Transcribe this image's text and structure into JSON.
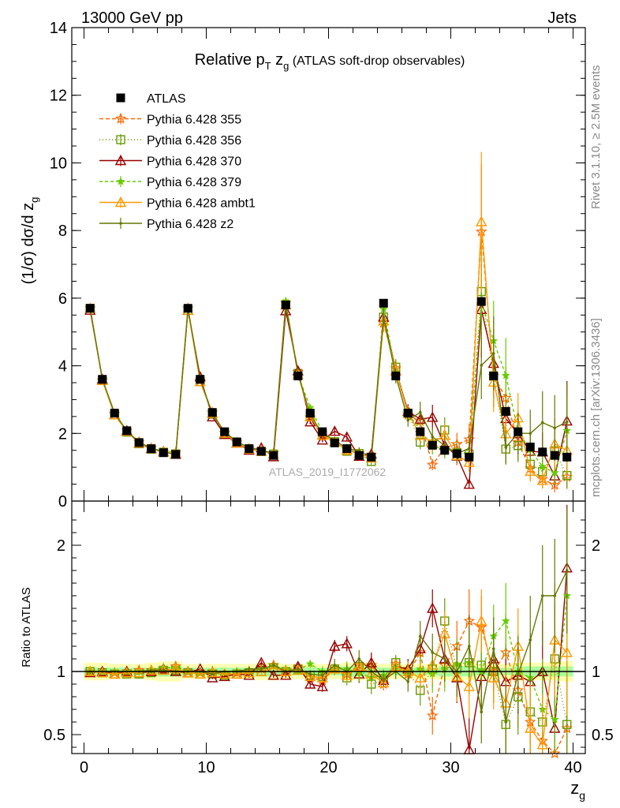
{
  "header": {
    "left": "13000 GeV pp",
    "right": "Jets"
  },
  "side_labels": {
    "rivet": "Rivet 3.1.10, ≥ 2.5M events",
    "mcplots": "mcplots.cern.ch [arXiv:1306.3436]"
  },
  "watermark": "ATLAS_2019_I1772062",
  "chart_data": {
    "type": "line",
    "title": {
      "main": "Relative p",
      "sub_T": "T",
      "mid": " z",
      "sub_g": "g",
      "tail": " (ATLAS soft-drop observables)"
    },
    "ylabel": "(1/σ) dσ/d z",
    "ylabel_sub": "g",
    "xlabel": "z",
    "xlabel_sub": "g",
    "ratio_ylabel": "Ratio to ATLAS",
    "xlim": [
      -1,
      41
    ],
    "ylim": [
      0,
      14
    ],
    "ratio_ylim": [
      0.35,
      2.35
    ],
    "x_ticks": [
      "0",
      "10",
      "20",
      "30",
      "40"
    ],
    "x_tick_values": [
      0,
      10,
      20,
      30,
      40
    ],
    "y_ticks": [
      "0",
      "2",
      "4",
      "6",
      "8",
      "10",
      "12",
      "14"
    ],
    "y_tick_values": [
      0,
      2,
      4,
      6,
      8,
      10,
      12,
      14
    ],
    "ratio_ticks": [
      "0.5",
      "1",
      "2"
    ],
    "ratio_tick_values": [
      0.5,
      1,
      2
    ],
    "x": [
      0.5,
      1.5,
      2.5,
      3.5,
      4.5,
      5.5,
      6.5,
      7.5,
      8.5,
      9.5,
      10.5,
      11.5,
      12.5,
      13.5,
      14.5,
      15.5,
      16.5,
      17.5,
      18.5,
      19.5,
      20.5,
      21.5,
      22.5,
      23.5,
      24.5,
      25.5,
      26.5,
      27.5,
      28.5,
      29.5,
      30.5,
      31.5,
      32.5,
      33.5,
      34.5,
      35.5,
      36.5,
      37.5,
      38.5,
      39.5
    ],
    "data": {
      "name": "ATLAS",
      "values": [
        5.7,
        3.6,
        2.6,
        2.08,
        1.73,
        1.55,
        1.43,
        1.38,
        5.7,
        3.6,
        2.62,
        2.05,
        1.75,
        1.55,
        1.47,
        1.35,
        5.8,
        3.7,
        2.6,
        2.05,
        1.72,
        1.55,
        1.35,
        1.3,
        5.85,
        3.7,
        2.6,
        2.05,
        1.65,
        1.5,
        1.4,
        1.3,
        5.9,
        3.7,
        2.65,
        2.05,
        1.6,
        1.45,
        1.35,
        1.3
      ],
      "band_inner": [
        0.03,
        0.03,
        0.03,
        0.03,
        0.03,
        0.03,
        0.04,
        0.04,
        0.03,
        0.03,
        0.03,
        0.03,
        0.03,
        0.03,
        0.04,
        0.04,
        0.03,
        0.03,
        0.03,
        0.03,
        0.03,
        0.04,
        0.04,
        0.04,
        0.03,
        0.03,
        0.03,
        0.03,
        0.03,
        0.04,
        0.04,
        0.04,
        0.03,
        0.03,
        0.03,
        0.04,
        0.04,
        0.04,
        0.04,
        0.04
      ],
      "band_outer": [
        0.07,
        0.07,
        0.06,
        0.06,
        0.06,
        0.07,
        0.08,
        0.08,
        0.06,
        0.06,
        0.06,
        0.06,
        0.06,
        0.06,
        0.07,
        0.07,
        0.06,
        0.06,
        0.06,
        0.06,
        0.06,
        0.07,
        0.07,
        0.07,
        0.06,
        0.06,
        0.06,
        0.06,
        0.06,
        0.07,
        0.07,
        0.07,
        0.06,
        0.06,
        0.06,
        0.07,
        0.07,
        0.07,
        0.07,
        0.08
      ]
    },
    "series": [
      {
        "name": "Pythia 6.428 355",
        "color": "#ff6600",
        "dash": "5,3",
        "marker": "star",
        "ratio": [
          1.0,
          0.99,
          0.99,
          1.0,
          1.01,
          1.01,
          1.02,
          1.04,
          1.0,
          0.99,
          1.0,
          0.98,
          0.99,
          1.0,
          1.02,
          1.05,
          1.01,
          1.03,
          0.95,
          0.93,
          1.02,
          0.98,
          1.05,
          1.05,
          0.9,
          1.06,
          0.98,
          1.15,
          0.65,
          1.05,
          1.2,
          1.4,
          1.35,
          1.0,
          1.15,
          0.85,
          0.6,
          0.45,
          0.35,
          0.55
        ],
        "err": [
          0.01,
          0.01,
          0.01,
          0.01,
          0.01,
          0.01,
          0.02,
          0.02,
          0.01,
          0.01,
          0.01,
          0.01,
          0.02,
          0.02,
          0.02,
          0.02,
          0.02,
          0.02,
          0.03,
          0.04,
          0.05,
          0.06,
          0.07,
          0.08,
          0.05,
          0.06,
          0.08,
          0.12,
          0.15,
          0.18,
          0.2,
          0.25,
          0.25,
          0.25,
          0.3,
          0.3,
          0.35,
          0.4,
          0.45,
          0.5
        ]
      },
      {
        "name": "Pythia 6.428 356",
        "color": "#669900",
        "dash": "1,3",
        "marker": "square",
        "ratio": [
          1.0,
          0.99,
          0.98,
          0.98,
          0.98,
          0.99,
          1.01,
          1.01,
          0.99,
          0.98,
          0.98,
          0.97,
          0.98,
          0.99,
          1.0,
          1.03,
          1.0,
          1.02,
          0.97,
          0.96,
          1.02,
          0.95,
          1.04,
          0.9,
          0.93,
          1.07,
          1.0,
          0.85,
          1.02,
          1.4,
          1.02,
          1.07,
          1.05,
          1.0,
          0.58,
          0.8,
          0.68,
          0.6,
          1.1,
          0.58
        ],
        "err": [
          0.01,
          0.01,
          0.01,
          0.01,
          0.01,
          0.01,
          0.02,
          0.02,
          0.01,
          0.01,
          0.01,
          0.01,
          0.02,
          0.02,
          0.02,
          0.02,
          0.02,
          0.02,
          0.03,
          0.04,
          0.05,
          0.06,
          0.07,
          0.08,
          0.05,
          0.06,
          0.08,
          0.12,
          0.15,
          0.18,
          0.2,
          0.25,
          0.25,
          0.25,
          0.3,
          0.3,
          0.35,
          0.4,
          0.45,
          0.5
        ]
      },
      {
        "name": "Pythia 6.428 370",
        "color": "#990000",
        "dash": "",
        "marker": "triangle",
        "ratio": [
          0.99,
          1.0,
          0.98,
          1.0,
          0.99,
          1.0,
          1.02,
          1.0,
          0.99,
          1.02,
          0.95,
          0.96,
          0.98,
          0.97,
          1.07,
          0.97,
          0.97,
          1.04,
          0.9,
          0.88,
          1.2,
          1.22,
          0.98,
          1.07,
          0.93,
          1.04,
          1.02,
          1.18,
          1.5,
          1.1,
          0.95,
          0.38,
          0.96,
          1.1,
          0.92,
          0.97,
          0.92,
          1.0,
          0.55,
          1.82
        ],
        "err": [
          0.01,
          0.01,
          0.01,
          0.01,
          0.01,
          0.01,
          0.02,
          0.02,
          0.01,
          0.01,
          0.01,
          0.01,
          0.02,
          0.02,
          0.02,
          0.02,
          0.02,
          0.02,
          0.03,
          0.04,
          0.05,
          0.06,
          0.07,
          0.08,
          0.05,
          0.06,
          0.08,
          0.12,
          0.15,
          0.18,
          0.2,
          0.25,
          0.25,
          0.25,
          0.3,
          0.3,
          0.35,
          0.4,
          0.45,
          0.5
        ]
      },
      {
        "name": "Pythia 6.428 379",
        "color": "#66cc00",
        "dash": "4,3",
        "marker": "smallstar",
        "ratio": [
          1.0,
          1.0,
          1.0,
          1.0,
          1.0,
          1.01,
          1.03,
          1.03,
          1.0,
          0.99,
          0.99,
          0.99,
          1.0,
          1.0,
          1.02,
          1.04,
          1.02,
          1.01,
          1.06,
          1.0,
          1.02,
          1.02,
          0.99,
          0.95,
          0.97,
          1.03,
          1.0,
          1.02,
          0.98,
          1.02,
          1.06,
          1.07,
          1.0,
          1.28,
          1.4,
          1.0,
          0.95,
          0.7,
          0.62,
          1.6
        ],
        "err": [
          0.01,
          0.01,
          0.01,
          0.01,
          0.01,
          0.01,
          0.02,
          0.02,
          0.01,
          0.01,
          0.01,
          0.01,
          0.02,
          0.02,
          0.02,
          0.02,
          0.02,
          0.02,
          0.03,
          0.04,
          0.05,
          0.06,
          0.07,
          0.08,
          0.05,
          0.06,
          0.08,
          0.12,
          0.15,
          0.18,
          0.2,
          0.25,
          0.25,
          0.25,
          0.3,
          0.3,
          0.35,
          0.4,
          0.45,
          0.5
        ]
      },
      {
        "name": "Pythia 6.428 ambt1",
        "color": "#ff9900",
        "dash": "",
        "marker": "opentriangle",
        "ratio": [
          1.0,
          0.99,
          0.98,
          0.99,
          0.99,
          1.01,
          1.01,
          1.02,
          0.99,
          0.98,
          0.99,
          0.98,
          0.98,
          0.99,
          1.0,
          1.03,
          1.0,
          1.01,
          0.96,
          0.95,
          1.02,
          0.97,
          1.04,
          0.98,
          0.91,
          1.04,
          1.0,
          0.95,
          1.05,
          1.3,
          0.96,
          0.88,
          1.4,
          0.95,
          0.75,
          1.2,
          0.55,
          0.42,
          1.25,
          1.15
        ],
        "err": [
          0.01,
          0.01,
          0.01,
          0.01,
          0.01,
          0.01,
          0.02,
          0.02,
          0.01,
          0.01,
          0.01,
          0.01,
          0.02,
          0.02,
          0.02,
          0.02,
          0.02,
          0.02,
          0.03,
          0.04,
          0.05,
          0.06,
          0.07,
          0.08,
          0.05,
          0.06,
          0.08,
          0.12,
          0.15,
          0.18,
          0.2,
          0.25,
          0.25,
          0.25,
          0.3,
          0.3,
          0.35,
          0.4,
          0.45,
          0.5
        ]
      },
      {
        "name": "Pythia 6.428 z2",
        "color": "#667700",
        "dash": "",
        "marker": "dot",
        "ratio": [
          1.0,
          1.0,
          1.0,
          1.0,
          1.0,
          1.01,
          1.01,
          1.0,
          1.0,
          1.0,
          0.98,
          1.0,
          1.0,
          1.02,
          1.02,
          1.05,
          1.0,
          1.02,
          0.98,
          0.97,
          1.05,
          1.0,
          1.1,
          1.0,
          0.93,
          1.0,
          0.92,
          1.28,
          1.15,
          1.1,
          1.0,
          1.2,
          0.68,
          1.18,
          0.6,
          0.98,
          1.25,
          1.6,
          1.6,
          1.8
        ],
        "err": [
          0.01,
          0.01,
          0.01,
          0.01,
          0.01,
          0.01,
          0.02,
          0.02,
          0.01,
          0.01,
          0.01,
          0.01,
          0.02,
          0.02,
          0.02,
          0.02,
          0.02,
          0.02,
          0.03,
          0.04,
          0.05,
          0.06,
          0.07,
          0.08,
          0.05,
          0.06,
          0.08,
          0.12,
          0.15,
          0.18,
          0.2,
          0.25,
          0.25,
          0.25,
          0.3,
          0.3,
          0.35,
          0.4,
          0.45,
          0.5
        ]
      }
    ]
  }
}
